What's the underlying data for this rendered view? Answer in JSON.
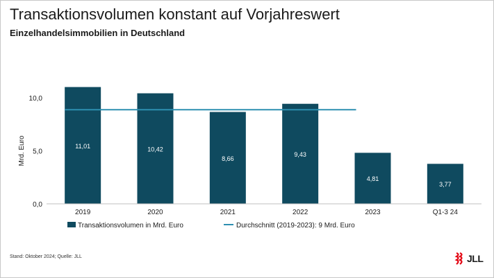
{
  "title": "Transaktionsvolumen konstant auf Vorjahreswert",
  "subtitle": "Einzelhandelsimmobilien in Deutschland",
  "source": "Stand: Oktober 2024; Quelle: JLL",
  "logo_text": "JLL",
  "colors": {
    "bar": "#0f4a5f",
    "average_line": "#2d8fb0",
    "axis": "#bfbfbf",
    "bar_label": "#ffffff",
    "logo_red": "#e30613"
  },
  "chart_data": {
    "type": "bar",
    "categories": [
      "2019",
      "2020",
      "2021",
      "2022",
      "2023",
      "Q1-3 24"
    ],
    "series": [
      {
        "name": "Transaktionsvolumen in Mrd. Euro",
        "values": [
          11.01,
          10.42,
          8.66,
          9.43,
          4.81,
          3.77
        ],
        "labels": [
          "11,01",
          "10,42",
          "8,66",
          "9,43",
          "4,81",
          "3,77"
        ]
      },
      {
        "name": "Durchschnitt (2019-2023): 9 Mrd. Euro",
        "type": "line",
        "value": 8.87,
        "span_categories": [
          "2019",
          "2023"
        ]
      }
    ],
    "ylabel": "Mrd. Euro",
    "xlabel": "",
    "ylim": [
      0,
      12
    ],
    "yticks": [
      0,
      5,
      10
    ],
    "ytick_labels": [
      "0,0",
      "5,0",
      "10,0"
    ],
    "grid": false,
    "legend_position": "bottom"
  }
}
